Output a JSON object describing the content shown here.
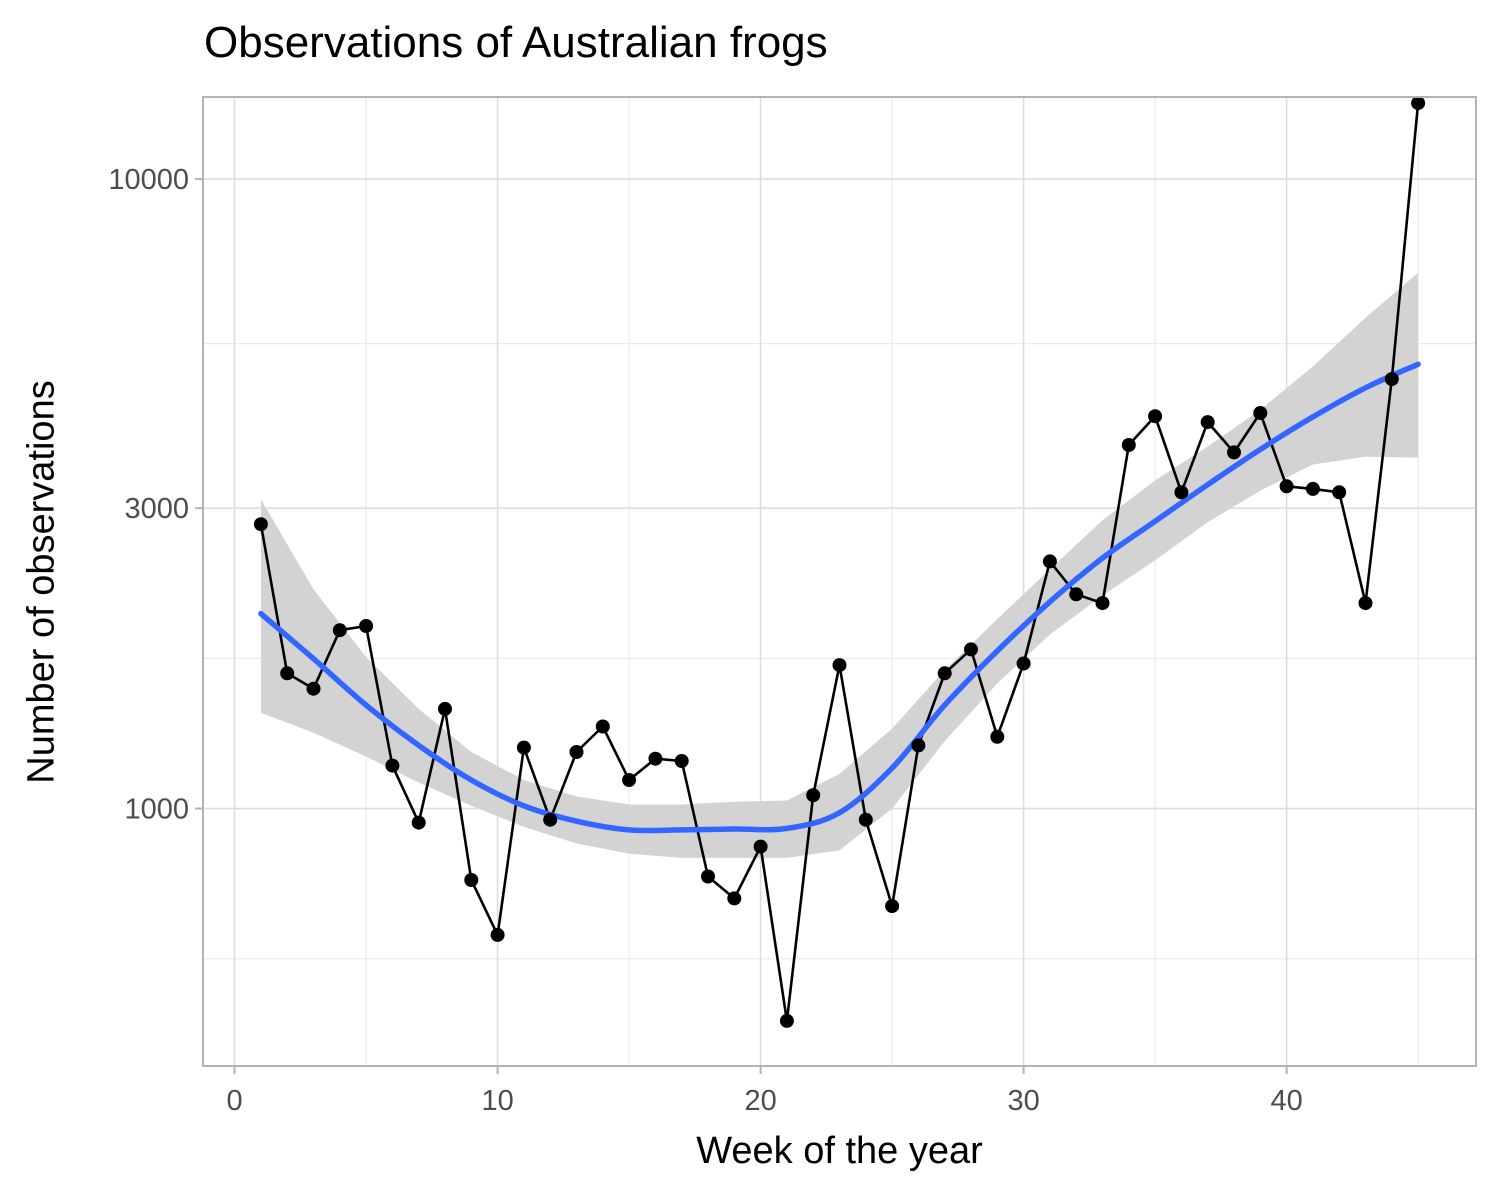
{
  "chart_data": {
    "type": "line",
    "title": "Observations of Australian frogs",
    "xlabel": "Week of the year",
    "ylabel": "Number of observations",
    "x_scale": "linear",
    "y_scale": "log",
    "xlim": [
      -1.2,
      47.2
    ],
    "ylim": [
      390,
      13500
    ],
    "x_ticks": [
      0,
      10,
      20,
      30,
      40
    ],
    "x_tick_labels": [
      "0",
      "10",
      "20",
      "30",
      "40"
    ],
    "y_ticks": [
      1000,
      3000,
      10000
    ],
    "y_tick_labels": [
      "1000",
      "3000",
      "10000"
    ],
    "grid": true,
    "legend": "none",
    "series": [
      {
        "type": "line+points",
        "color": "#000000",
        "x": [
          1,
          2,
          3,
          4,
          5,
          6,
          7,
          8,
          9,
          10,
          11,
          12,
          13,
          14,
          15,
          16,
          17,
          18,
          19,
          20,
          21,
          22,
          23,
          24,
          25,
          26,
          27,
          28,
          29,
          30,
          31,
          32,
          33,
          34,
          35,
          36,
          37,
          38,
          39,
          40,
          41,
          42,
          43,
          44,
          45
        ],
        "values": [
          2830,
          1640,
          1550,
          1920,
          1950,
          1170,
          950,
          1440,
          770,
          630,
          1250,
          960,
          1230,
          1350,
          1110,
          1200,
          1190,
          780,
          720,
          870,
          460,
          1050,
          1690,
          960,
          700,
          1260,
          1640,
          1790,
          1300,
          1700,
          2470,
          2190,
          2120,
          3780,
          4200,
          3180,
          4110,
          3680,
          4250,
          3250,
          3220,
          3180,
          2120,
          4810,
          13200
        ]
      },
      {
        "type": "smooth",
        "color": "#3366ff",
        "ribbon_color": "#d3d3d3",
        "x": [
          1,
          3,
          5,
          7,
          9,
          11,
          13,
          15,
          17,
          19,
          21,
          23,
          25,
          27,
          29,
          31,
          33,
          35,
          37,
          39,
          41,
          43,
          45
        ],
        "values": [
          2040,
          1730,
          1460,
          1260,
          1110,
          1010,
          955,
          925,
          925,
          928,
          930,
          985,
          1160,
          1460,
          1780,
          2130,
          2500,
          2860,
          3270,
          3720,
          4190,
          4660,
          5080
        ],
        "lower": [
          1420,
          1320,
          1210,
          1100,
          1010,
          935,
          880,
          848,
          835,
          835,
          835,
          858,
          1000,
          1280,
          1580,
          1890,
          2180,
          2480,
          2850,
          3200,
          3520,
          3620,
          3610
        ],
        "upper": [
          3100,
          2230,
          1740,
          1440,
          1230,
          1110,
          1045,
          1015,
          1015,
          1025,
          1030,
          1135,
          1340,
          1660,
          2000,
          2400,
          2870,
          3320,
          3760,
          4300,
          5040,
          6020,
          7100
        ]
      }
    ]
  }
}
